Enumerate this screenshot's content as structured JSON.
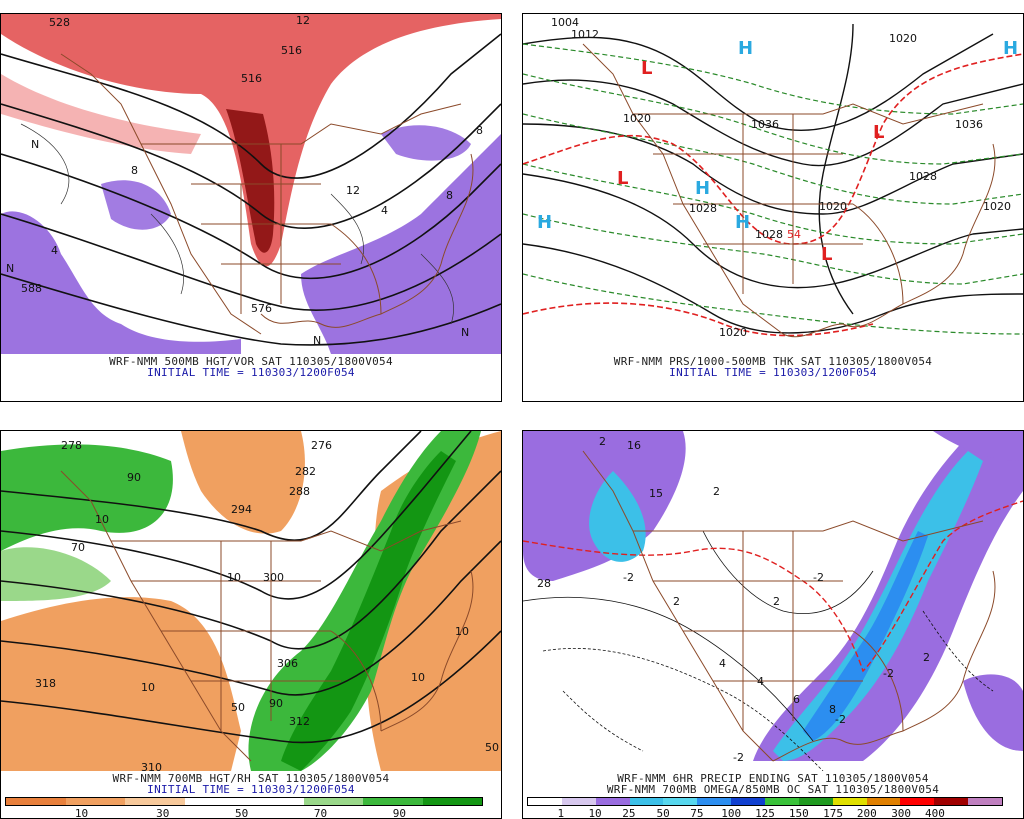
{
  "panels": {
    "p1": {
      "title": "WRF-NMM 500MB HGT/VOR SAT 110305/1800V054",
      "subtitle": "INITIAL TIME = 110303/1200F054",
      "labels": [
        "528",
        "516",
        "516",
        "588",
        "576",
        "12",
        "12",
        "8",
        "8",
        "8",
        "4",
        "4",
        "N",
        "N",
        "N",
        "N"
      ]
    },
    "p2": {
      "title": "WRF-NMM PRS/1000-500MB THK SAT 110305/1800V054",
      "subtitle": "INITIAL TIME = 110303/1200F054",
      "labels": [
        "1004",
        "1012",
        "1020",
        "1036",
        "1036",
        "1028",
        "1028",
        "1028",
        "1020",
        "1020",
        "1020",
        "1020",
        "54"
      ],
      "high_symbols": [
        "H",
        "H",
        "H",
        "H",
        "H"
      ],
      "low_symbols": [
        "L",
        "L",
        "L",
        "L"
      ],
      "colors": {
        "high": "#2aa9e0",
        "low": "#e02020",
        "thickness": "#2a8a2a",
        "thickness_540": "#e02020",
        "isobar": "#111111"
      }
    },
    "p3": {
      "title": "WRF-NMM 700MB HGT/RH SAT 110305/1800V054",
      "subtitle": "INITIAL TIME = 110303/1200F054",
      "labels": [
        "276",
        "278",
        "282",
        "288",
        "294",
        "300",
        "306",
        "312",
        "318",
        "310",
        "10",
        "10",
        "10",
        "10",
        "10",
        "50",
        "50",
        "70",
        "90",
        "90"
      ],
      "colorbar": {
        "colors": [
          "#e8803c",
          "#f0a060",
          "#f7c99b",
          "#ffffff",
          "#ffffff",
          "#9ad88a",
          "#3cb83c",
          "#139613"
        ],
        "ticks": [
          "10",
          "30",
          "50",
          "70",
          "90"
        ]
      }
    },
    "p4": {
      "title": "WRF-NMM 6HR PRECIP ENDING SAT 110305/1800V054",
      "title2": "WRF-NMM 700MB OMEGA/850MB OC SAT 110305/1800V054",
      "labels": [
        "28",
        "2",
        "2",
        "2",
        "2",
        "2",
        "-2",
        "-2",
        "-2",
        "-2",
        "-2",
        "4",
        "4",
        "6",
        "8",
        "16",
        "15"
      ],
      "colorbar": {
        "colors": [
          "#ffffff",
          "#d7c8ee",
          "#9a6de0",
          "#3cc0e8",
          "#57d7ee",
          "#2c8ef0",
          "#1040d0",
          "#3ac23a",
          "#1f9a1f",
          "#e0e000",
          "#e08000",
          "#ff0000",
          "#a00000",
          "#c080c0"
        ],
        "ticks": [
          "1",
          "10",
          "25",
          "50",
          "75",
          "100",
          "125",
          "150",
          "175",
          "200",
          "300",
          "400"
        ]
      }
    }
  }
}
